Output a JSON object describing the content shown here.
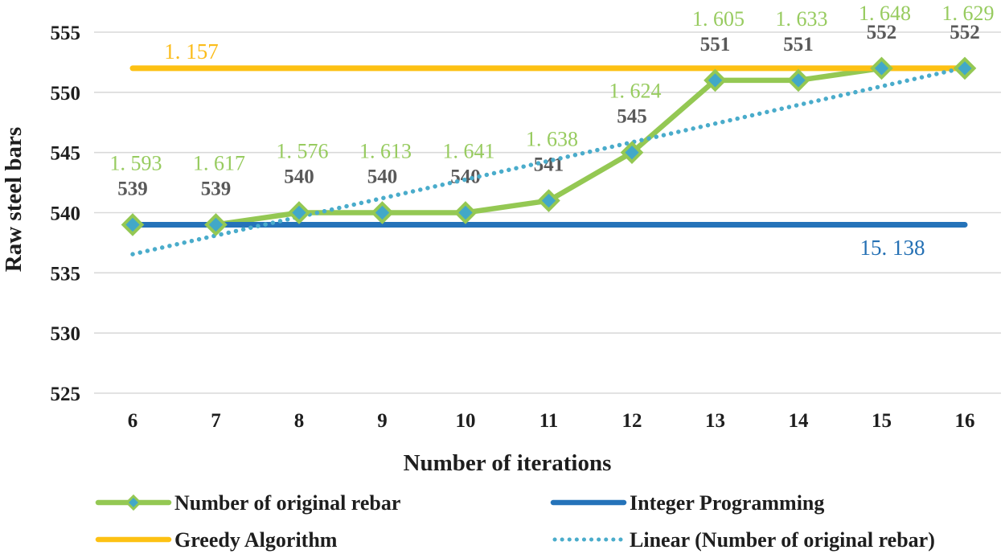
{
  "chart_data": {
    "type": "line",
    "title": "",
    "xlabel": "Number of iterations",
    "ylabel": "Raw steel bars",
    "x": [
      6,
      7,
      8,
      9,
      10,
      11,
      12,
      13,
      14,
      15,
      16
    ],
    "yticks": [
      525,
      530,
      535,
      540,
      545,
      550,
      555
    ],
    "ylim": [
      525,
      557
    ],
    "grid": true,
    "legend_position": "bottom",
    "colors": {
      "rebar_green": "#94C853",
      "marker_teal": "#42A8C8",
      "integer_blue": "#2573B9",
      "greedy_orange": "#FDC113",
      "trend_teal": "#4AACCB",
      "point_label_gray": "#595959",
      "grid_gray": "#D9D9D9",
      "axis_text": "#1E1E1E"
    },
    "series": [
      {
        "name": "Number of original rebar",
        "type": "line-markers",
        "color": "#94C853",
        "marker": "diamond",
        "marker_fill": "#42A8C8",
        "values": [
          539,
          539,
          540,
          540,
          540,
          541,
          545,
          551,
          551,
          552,
          552
        ],
        "point_labels": [
          "539",
          "539",
          "540",
          "540",
          "540",
          "541",
          "545",
          "551",
          "551",
          "552",
          "552"
        ],
        "time_labels": [
          "1. 593",
          "1. 617",
          "1. 576",
          "1. 613",
          "1. 641",
          "1. 638",
          "1. 624",
          "1. 605",
          "1. 633",
          "1. 648",
          "1. 629"
        ],
        "point_label_color": "#595959",
        "time_label_color": "#97CB5F"
      },
      {
        "name": "Integer Programming",
        "type": "hline",
        "color": "#2573B9",
        "value": 539,
        "label": "15. 138",
        "label_color": "#2470B4"
      },
      {
        "name": "Greedy Algorithm",
        "type": "hline",
        "color": "#FDC113",
        "value": 552,
        "label": "1. 157",
        "label_color": "#FBBC1A"
      },
      {
        "name": "Linear (Number of original rebar)",
        "type": "dotted-trend",
        "color": "#4AACCB",
        "start_value": 536.55,
        "end_value": 552.05
      }
    ],
    "legend": [
      {
        "label": "Number of original rebar",
        "swatch": "line-diamond",
        "color": "#94C853",
        "marker_fill": "#42A8C8"
      },
      {
        "label": "Integer Programming",
        "swatch": "line",
        "color": "#2573B9"
      },
      {
        "label": "Greedy Algorithm",
        "swatch": "line",
        "color": "#FDC113"
      },
      {
        "label": "Linear (Number of original rebar)",
        "swatch": "dotted",
        "color": "#4AACCB"
      }
    ]
  }
}
